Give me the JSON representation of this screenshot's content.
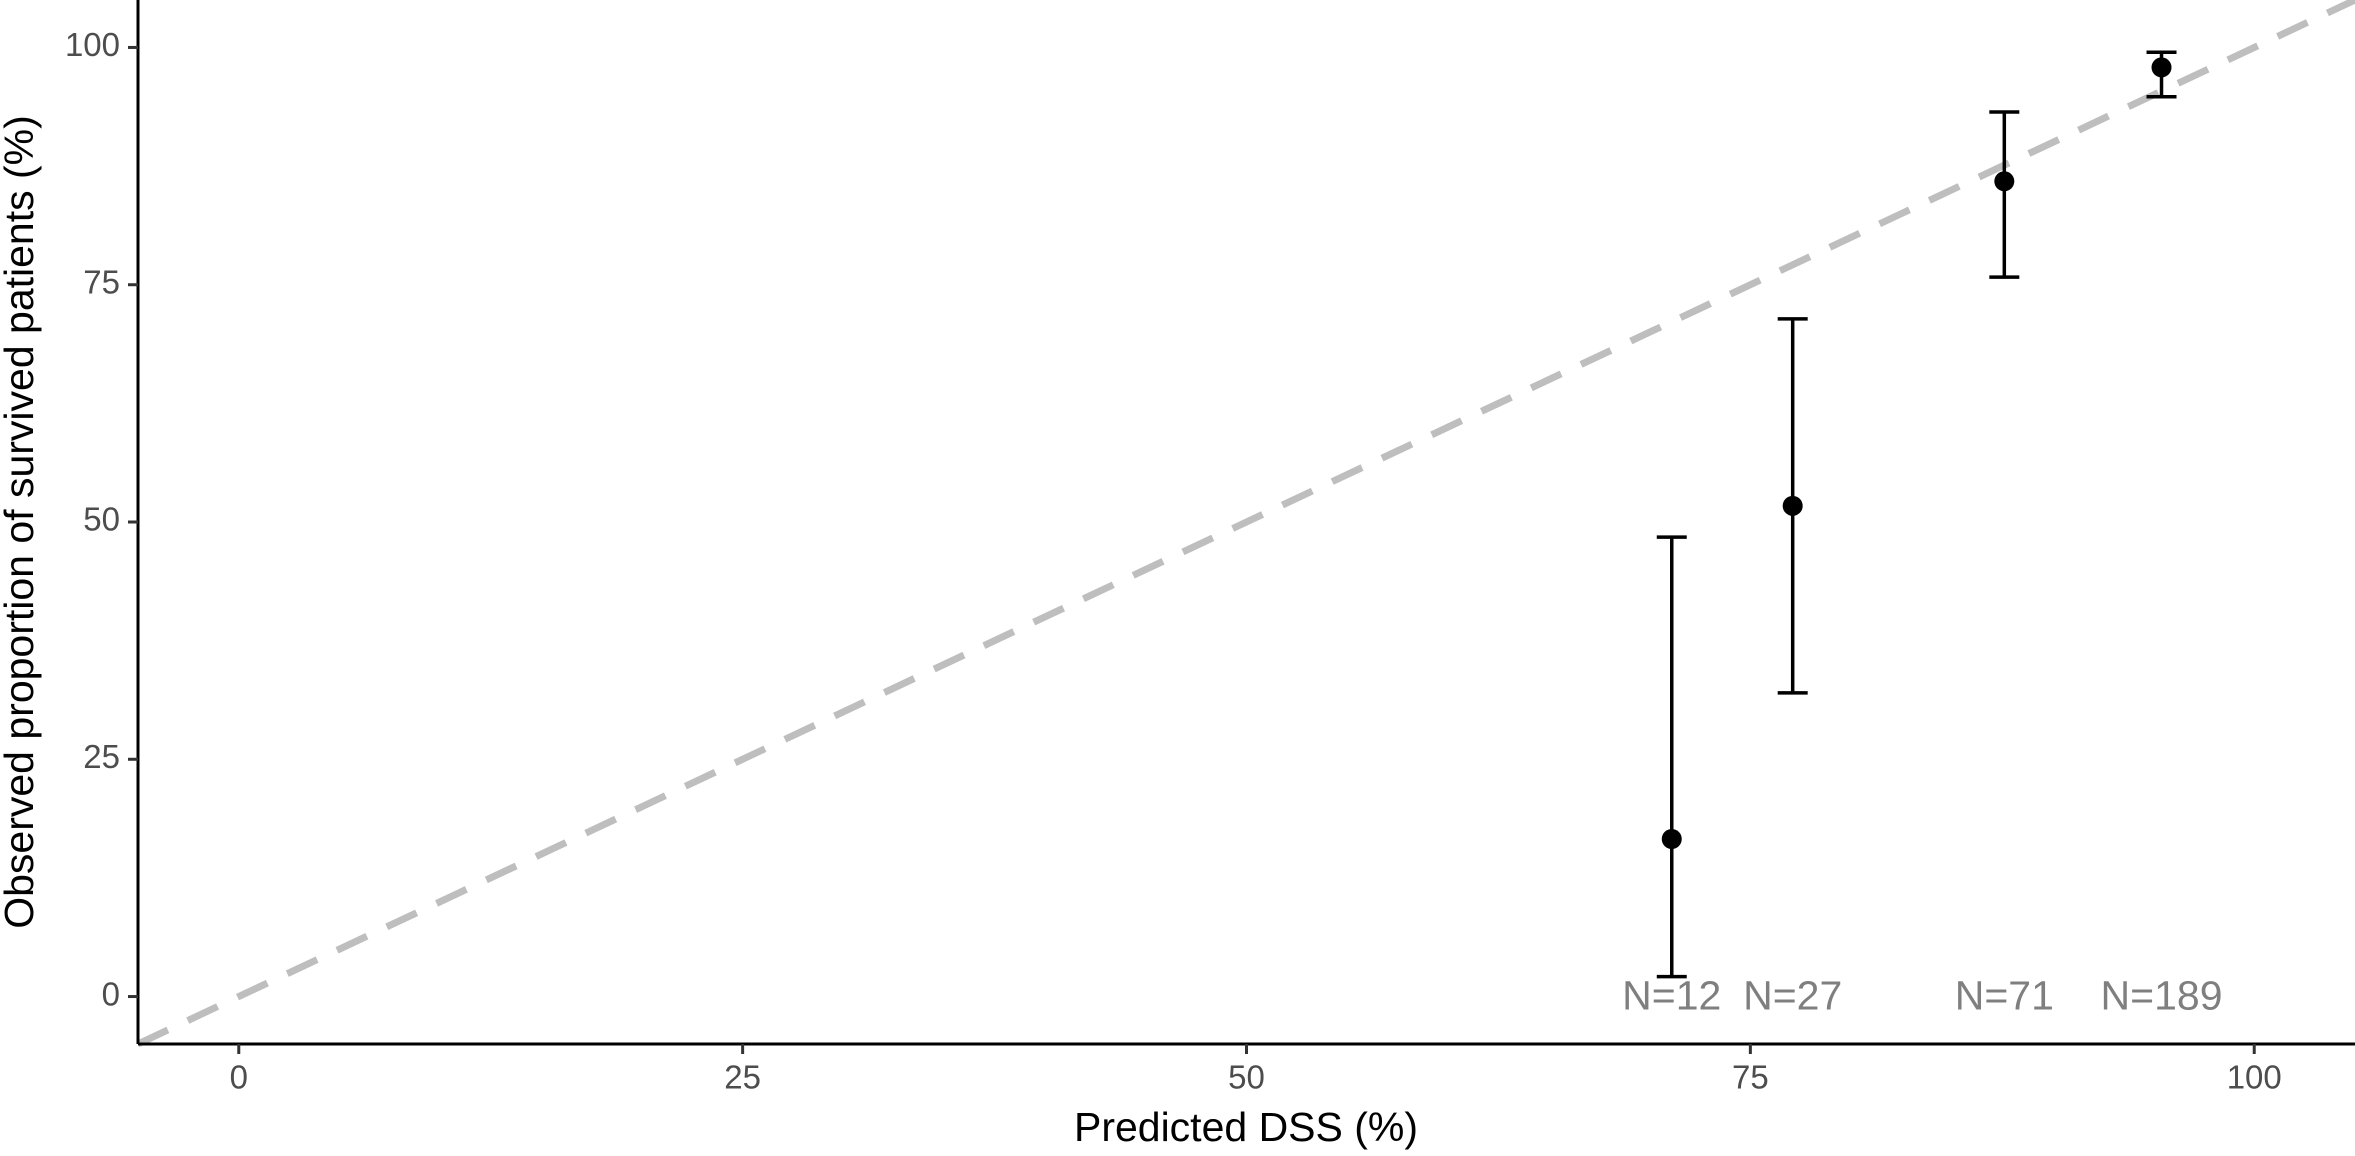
{
  "chart_data": {
    "type": "scatter",
    "x_label": "Predicted DSS (%)",
    "y_label": "Observed proportion of survived patients (%)",
    "x": [
      71.1,
      77.1,
      87.6,
      95.4
    ],
    "values": [
      16.6,
      51.7,
      85.9,
      97.9
    ],
    "lower": [
      2.1,
      32.0,
      75.8,
      94.8
    ],
    "upper": [
      48.4,
      71.4,
      93.2,
      99.5
    ],
    "point_labels": [
      "N=12",
      "N=27",
      "N=71",
      "N=189"
    ],
    "color": "#000000",
    "label_color": "#7f7f7f",
    "diagonal": true,
    "diagonal_color": "#bebebe",
    "xlim": [
      -5,
      105
    ],
    "ylim": [
      -5,
      105
    ],
    "xticks": [
      0,
      25,
      50,
      75,
      100
    ],
    "yticks": [
      0,
      25,
      50,
      75,
      100
    ]
  }
}
